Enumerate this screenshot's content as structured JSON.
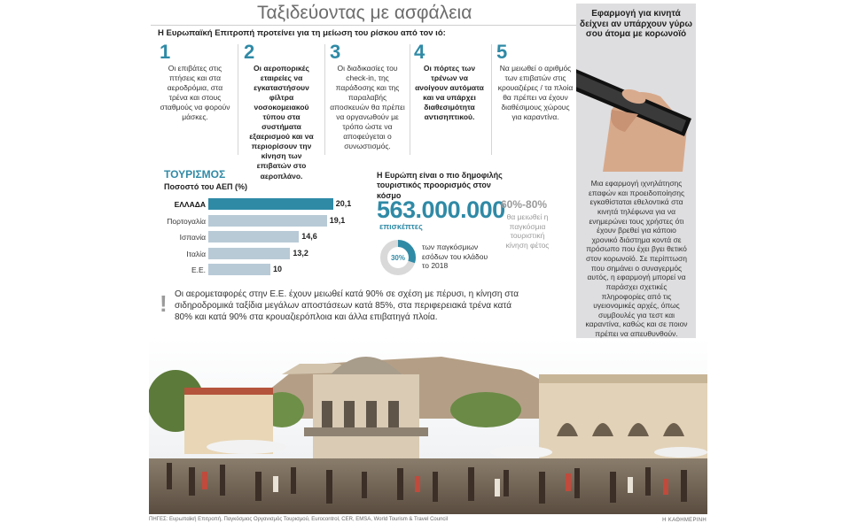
{
  "header": {
    "title": "Ταξιδεύοντας με ασφάλεια",
    "intro": "Η Ευρωπαϊκή Επιτροπή προτείνει για τη μείωση του ρίσκου από τον ιό:"
  },
  "steps": [
    {
      "num": "1",
      "text": "Οι επιβάτες στις πτήσεις και στα αεροδρόμια, στα τρένα και στους σταθμούς να φορούν μάσκες."
    },
    {
      "num": "2",
      "text": "Οι αεροπορικές εταιρείες να εγκαταστήσουν φίλτρα νοσοκομειακού τύπου στα συστήματα εξαερισμού και να περιορίσουν την κίνηση των επιβατών στο αεροπλάνο."
    },
    {
      "num": "3",
      "text": "Οι διαδικασίες του check-in, της παράδοσης και της παραλαβής αποσκευών θα πρέπει να οργανωθούν με τρόπο ώστε να αποφεύγεται ο συνωστισμός."
    },
    {
      "num": "4",
      "text": "Οι πόρτες των τρένων να ανοίγουν αυτόματα και να υπάρχει διαθεσιμότητα αντισηπτικού."
    },
    {
      "num": "5",
      "text": "Να μειωθεί ο αριθμός των επιβατών στις κρουαζιέρες / τα πλοία θα πρέπει να έχουν διαθέσιμους χώρους για καραντίνα."
    }
  ],
  "tourism": {
    "title": "ΤΟΥΡΙΣΜΟΣ",
    "subtitle": "Ποσοστό του ΑΕΠ (%)"
  },
  "chart_data": {
    "type": "bar",
    "title": "ΤΟΥΡΙΣΜΟΣ",
    "ylabel": "Ποσοστό του ΑΕΠ (%)",
    "categories": [
      "ΕΛΛΑΔΑ",
      "Πορτογαλία",
      "Ισπανία",
      "Ιταλία",
      "Ε.Ε."
    ],
    "values": [
      20.1,
      19.1,
      14.6,
      13.2,
      10
    ],
    "labels": [
      "20,1",
      "19,1",
      "14,6",
      "13,2",
      "10"
    ],
    "unit": "%",
    "xlim": [
      0,
      21
    ],
    "highlight_color": "#2f8aa6",
    "bar_color": "#b8cad6"
  },
  "europe": {
    "title": "Η Ευρώπη είναι ο πιο δημοφιλής τουριστικός προορισμός στον κόσμο",
    "visitors": "563.000.000",
    "visitors_label": "επισκέπτες",
    "share_pct": 30,
    "share_label": "30%",
    "share_text": "των παγκόσμιων εσόδων του κλάδου το 2018",
    "drop_range": "60%-80%",
    "drop_text": "θα μειωθεί η παγκόσμια τουριστική κίνηση φέτος"
  },
  "note": {
    "mark": "!",
    "text": "Οι αερομεταφορές στην Ε.Ε. έχουν μειωθεί κατά 90% σε σχέση με πέρυσι, η κίνηση στα σιδηροδρομικά ταξίδια μεγάλων αποστάσεων κατά 85%, στα περιφερειακά τρένα κατά 80% και κατά 90% στα κρουαζιερόπλοια και άλλα επιβατηγά πλοία."
  },
  "sidebar": {
    "heading": "Εφαρμογή για κινητά δείχνει αν υπάρχουν γύρω σου άτομα με κορωνοϊό",
    "body": "Μια εφαρμογή ιχνηλάτησης επαφών και προειδοποίησης εγκαθίσταται εθελοντικά στα κινητά τηλέφωνα για να ενημερώνει τους χρήστες ότι έχουν βρεθεί για κάποιο χρονικό διάστημα κοντά σε πρόσωπο που έχει βγει θετικό στον κορωνοϊό. Σε περίπτωση που σημάνει ο συναγερμός αυτός, η εφαρμογή μπορεί να παράσχει σχετικές πληροφορίες από τις υγειονομικές αρχές, όπως συμβουλές για τεστ και καραντίνα, καθώς και σε ποιον πρέπει να απευθυνθούν."
  },
  "footer": {
    "sources": "ΠΗΓΕΣ: Ευρωπαϊκή Επιτροπή, Παγκόσμιος Οργανισμός Τουρισμού, Eurocontrol, CER, EMSA, World Tourism & Travel Council",
    "brand": "Η ΚΑΘΗΜΕΡΙΝΗ"
  },
  "colors": {
    "accent": "#2f8aa6",
    "muted": "#9b9b9b",
    "sidebar_bg": "#dedee0"
  }
}
